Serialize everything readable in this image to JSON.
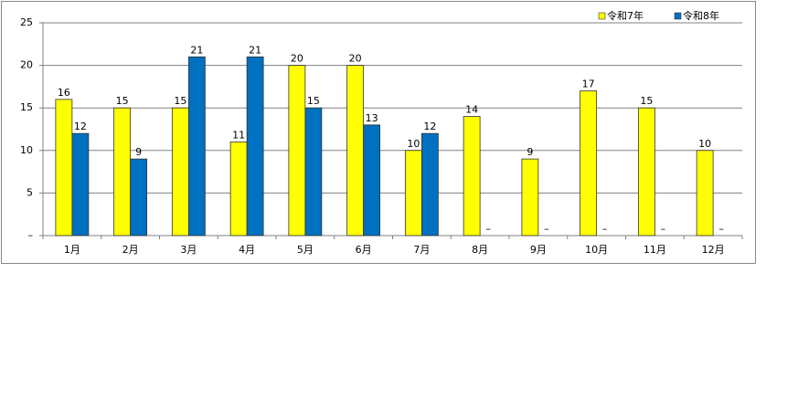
{
  "chart_data": {
    "type": "bar",
    "categories": [
      "1月",
      "2月",
      "3月",
      "4月",
      "5月",
      "6月",
      "7月",
      "8月",
      "9月",
      "10月",
      "11月",
      "12月"
    ],
    "series": [
      {
        "name": "令和7年",
        "color": "#ffff00",
        "values": [
          16,
          15,
          15,
          11,
          20,
          20,
          10,
          14,
          9,
          17,
          15,
          10
        ],
        "value_labels": [
          "16",
          "15",
          "15",
          "11",
          "20",
          "20",
          "10",
          "14",
          "9",
          "17",
          "15",
          "10"
        ]
      },
      {
        "name": "令和8年",
        "color": "#0070c0",
        "values": [
          12,
          9,
          21,
          21,
          15,
          13,
          12,
          0,
          0,
          0,
          0,
          0
        ],
        "value_labels": [
          "12",
          "9",
          "21",
          "21",
          "15",
          "13",
          "12",
          "–",
          "–",
          "–",
          "–",
          "–"
        ]
      }
    ],
    "ylim": [
      0,
      25
    ],
    "yticks": [
      {
        "value": 0,
        "label": "–"
      },
      5,
      10,
      15,
      20,
      25
    ],
    "grid": true,
    "legend": "top-right"
  }
}
